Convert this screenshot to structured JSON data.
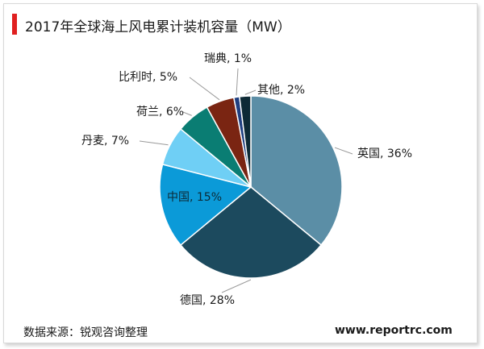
{
  "header": {
    "title": "2017年全球海上风电累计装机容量（MW）",
    "accent_color": "#e02020"
  },
  "footer": {
    "source": "数据来源：锐观咨询整理",
    "website": "www.reportrc.com"
  },
  "chart_data": {
    "type": "pie",
    "unit": "%",
    "slices": [
      {
        "label": "英国, 36%",
        "name": "英国",
        "value": 36,
        "color": "#5b8ea6"
      },
      {
        "label": "德国, 28%",
        "name": "德国",
        "value": 28,
        "color": "#1c4a5e"
      },
      {
        "label": "中国, 15%",
        "name": "中国",
        "value": 15,
        "color": "#0b9ad8"
      },
      {
        "label": "丹麦, 7%",
        "name": "丹麦",
        "value": 7,
        "color": "#6fcff5"
      },
      {
        "label": "荷兰, 6%",
        "name": "荷兰",
        "value": 6,
        "color": "#0a7d73"
      },
      {
        "label": "比利时, 5%",
        "name": "比利时",
        "value": 5,
        "color": "#7a2512"
      },
      {
        "label": "瑞典, 1%",
        "name": "瑞典",
        "value": 1,
        "color": "#1f3f80"
      },
      {
        "label": "其他, 2%",
        "name": "其他",
        "value": 2,
        "color": "#0d2a36"
      }
    ]
  }
}
